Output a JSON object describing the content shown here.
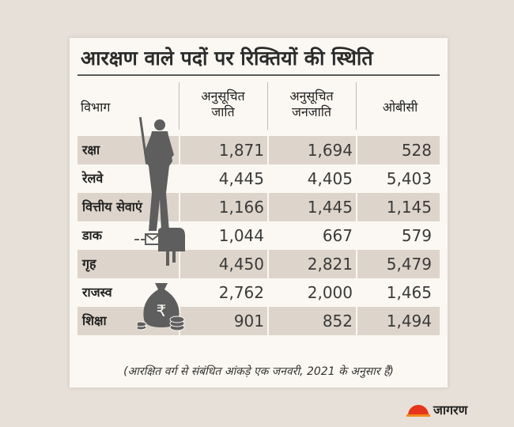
{
  "title": "आरक्षण वाले पदों पर रिक्तियों की स्थिति",
  "headers": {
    "department": "विभाग",
    "sc_line1": "अनुसूचित",
    "sc_line2": "जाति",
    "st_line1": "अनुसूचित",
    "st_line2": "जनजाति",
    "obc": "ओबीसी"
  },
  "footnote": "(आरक्षित वर्ग से संबंधित आंकड़े एक जनवरी, 2021 के अनुसार हैं)",
  "logo": {
    "text": "जागरण",
    "brand_color": "#e8341c"
  },
  "colors": {
    "card": "#fbf8f3",
    "shaded_row": "#ddd5cb",
    "background": "#e6e0d8",
    "silhouette": "#5e5e5e"
  },
  "icons": [
    "soldier-silhouette-icon",
    "mailbox-icon",
    "money-bag-icon",
    "coins-icon",
    "sunrise-logo-icon"
  ],
  "chart_data": {
    "type": "table",
    "title": "आरक्षण वाले पदों पर रिक्तियों की स्थिति",
    "columns": [
      "विभाग",
      "अनुसूचित जाति",
      "अनुसूचित जनजाति",
      "ओबीसी"
    ],
    "rows": [
      [
        "रक्षा",
        "1,871",
        "1,694",
        "528"
      ],
      [
        "रेलवे",
        "4,445",
        "4,405",
        "5,403"
      ],
      [
        "वित्तीय सेवाएं",
        "1,166",
        "1,445",
        "1,145"
      ],
      [
        "डाक",
        "1,044",
        "667",
        "579"
      ],
      [
        "गृह",
        "4,450",
        "2,821",
        "5,479"
      ],
      [
        "राजस्व",
        "2,762",
        "2,000",
        "1,465"
      ],
      [
        "शिक्षा",
        "901",
        "852",
        "1,494"
      ]
    ],
    "shaded_rows": [
      0,
      2,
      4,
      6
    ],
    "annotation": "(आरक्षित वर्ग से संबंधित आंकड़े एक जनवरी, 2021 के अनुसार हैं)"
  }
}
